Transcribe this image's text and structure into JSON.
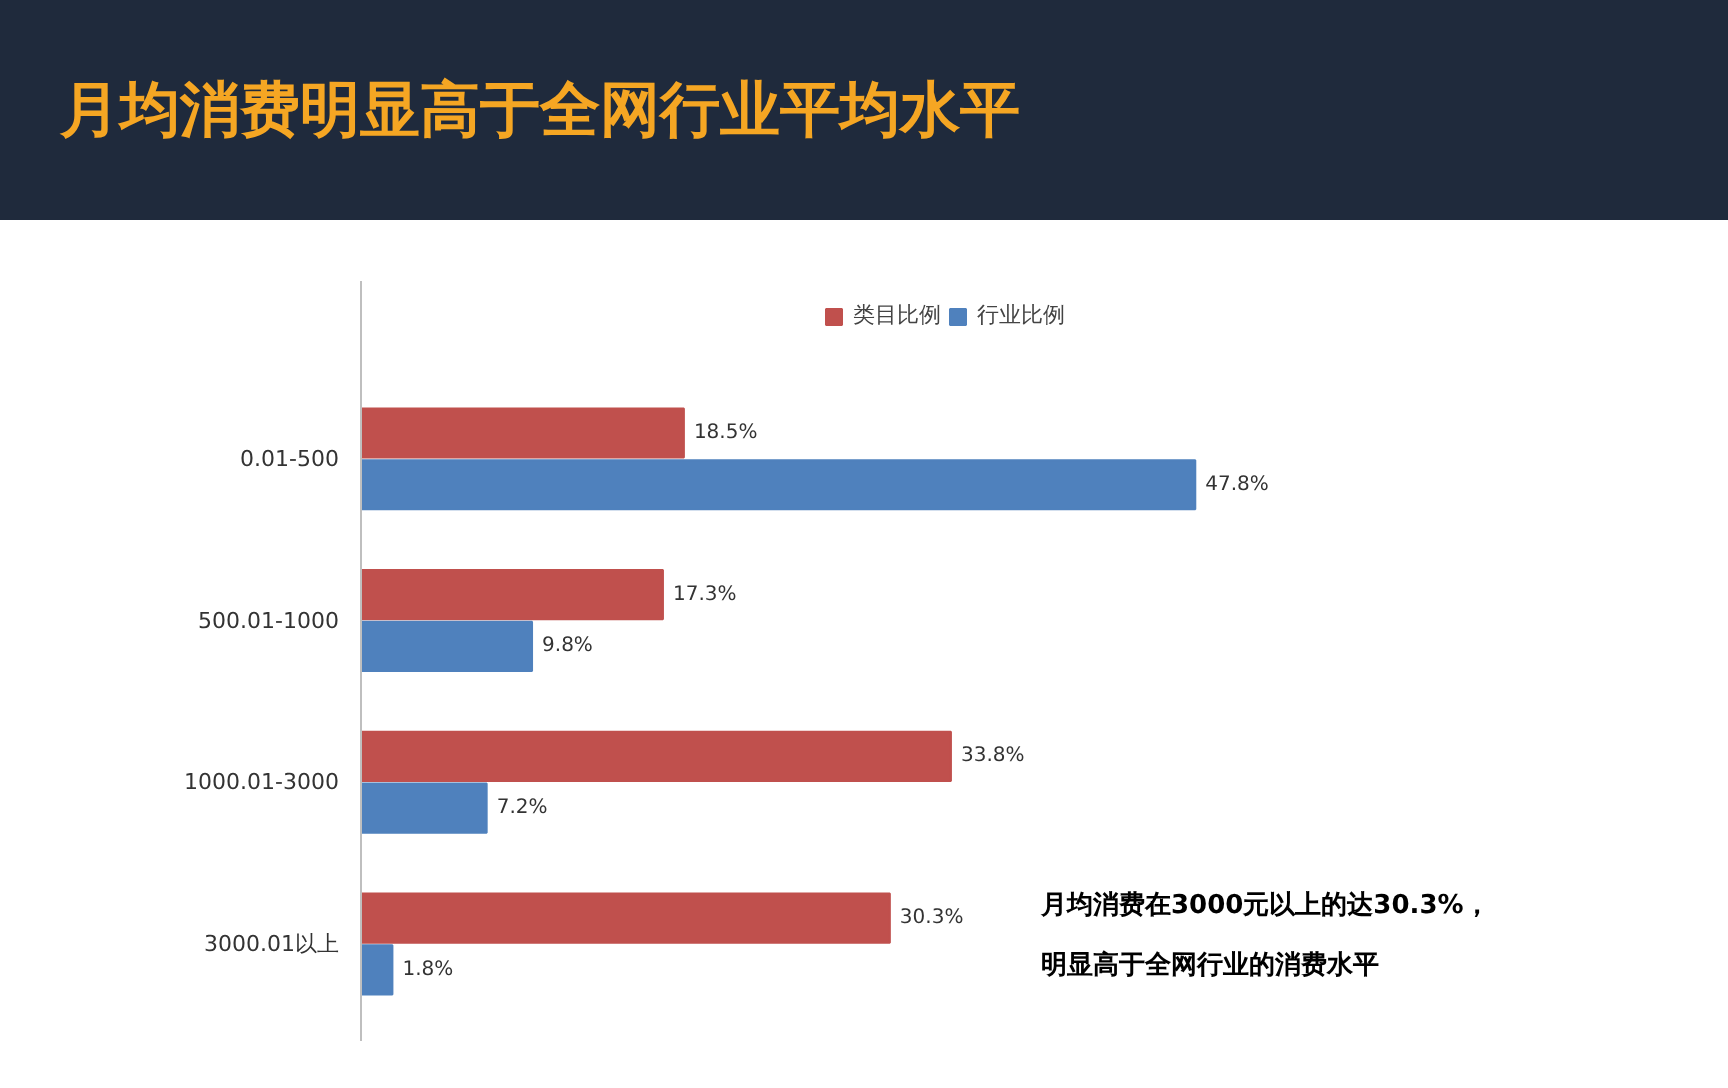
{
  "chart_data": {
    "type": "bar",
    "orientation": "horizontal",
    "title": "月均消费明显高于全网行业平均水平",
    "categories": [
      "0.01-500",
      "500.01-1000",
      "1000.01-3000",
      "3000.01以上"
    ],
    "series": [
      {
        "name": "类目比例",
        "color": "#c0504d",
        "values": [
          18.5,
          17.3,
          33.8,
          30.3
        ],
        "value_labels": [
          "18.5%",
          "17.3%",
          "33.8%",
          "30.3%"
        ]
      },
      {
        "name": "行业比例",
        "color": "#4f81bd",
        "values": [
          47.8,
          9.8,
          7.2,
          1.8
        ],
        "value_labels": [
          "47.8%",
          "9.8%",
          "7.2%",
          "1.8%"
        ]
      }
    ],
    "legend": "top",
    "grid": false,
    "annotations": [
      "月均消费在3000元以上的达30.3%，",
      "明显高于全网行业的消费水平"
    ]
  }
}
